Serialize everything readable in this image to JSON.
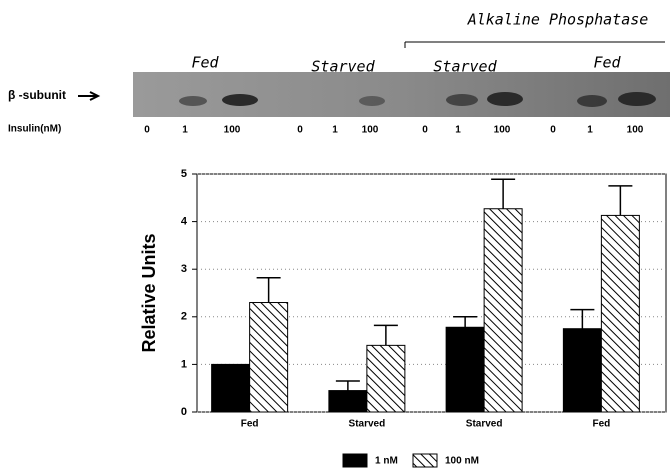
{
  "blot": {
    "title": "Alkaline Phosphatase",
    "groups": [
      "Fed",
      "Starved",
      "Starved",
      "Fed"
    ],
    "band_label": "β -subunit",
    "row_label": "Insulin(nM)",
    "lanes": [
      "0",
      "1",
      "100",
      "0",
      "1",
      "100",
      "0",
      "1",
      "100",
      "0",
      "1",
      "100"
    ]
  },
  "chart_data": {
    "type": "bar",
    "ylabel": "Relative Units",
    "categories": [
      "Fed",
      "Starved",
      "Starved",
      "Fed"
    ],
    "series": [
      {
        "name": "1 nM",
        "color": "#000000",
        "values": [
          1.0,
          0.45,
          1.78,
          1.75
        ],
        "errors": [
          null,
          0.2,
          0.22,
          0.4
        ]
      },
      {
        "name": "100 nM",
        "color": "hatch",
        "values": [
          2.3,
          1.4,
          4.27,
          4.13
        ],
        "errors": [
          0.52,
          0.42,
          0.62,
          0.62
        ]
      }
    ],
    "ylim": [
      0,
      5
    ],
    "yticks": [
      0,
      1,
      2,
      3,
      4,
      5
    ],
    "grid": true
  }
}
